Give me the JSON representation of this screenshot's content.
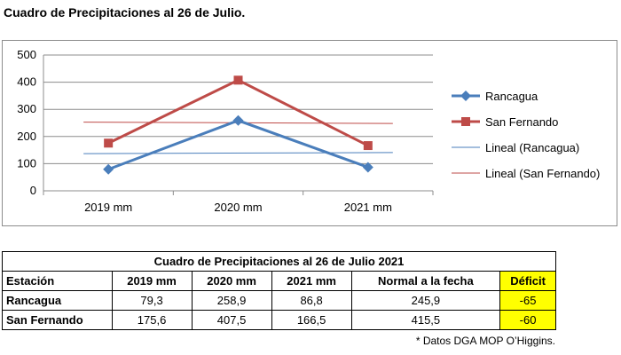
{
  "page_title": "Cuadro de Precipitaciones  al 26 de Julio.",
  "chart_data": {
    "type": "line",
    "title": "",
    "categories": [
      "2019 mm",
      "2020 mm",
      "2021 mm"
    ],
    "ylim": [
      0,
      500
    ],
    "yticks": [
      "0",
      "100",
      "200",
      "300",
      "400",
      "500"
    ],
    "grid": true,
    "legend_position": "right",
    "series": [
      {
        "name": "Rancagua",
        "values": [
          79.3,
          258.9,
          86.8
        ],
        "color": "#4a7ebb",
        "marker": "diamond"
      },
      {
        "name": "San Fernando",
        "values": [
          175.6,
          407.5,
          166.5
        ],
        "color": "#be4b48",
        "marker": "square"
      }
    ],
    "trendlines": [
      {
        "name": "Lineal (Rancagua)",
        "start": 137,
        "end": 141,
        "color": "#4a7ebb"
      },
      {
        "name": "Lineal (San Fernando)",
        "start": 253,
        "end": 248,
        "color": "#be4b48"
      }
    ]
  },
  "table": {
    "caption": "Cuadro de Precipitaciones  al 26 de Julio 2021",
    "headers": [
      "Estación",
      "2019 mm",
      "2020 mm",
      "2021 mm",
      "Normal a la fecha",
      "Déficit"
    ],
    "rows": [
      {
        "station": "Rancagua",
        "y2019": "79,3",
        "y2020": "258,9",
        "y2021": "86,8",
        "normal": "245,9",
        "deficit": "-65"
      },
      {
        "station": "San Fernando",
        "y2019": "175,6",
        "y2020": "407,5",
        "y2021": "166,5",
        "normal": "415,5",
        "deficit": "-60"
      }
    ]
  },
  "source_note": "* Datos DGA MOP O’Higgins.",
  "colors": {
    "highlight": "#ffff00",
    "grid": "#8c8c8c"
  }
}
